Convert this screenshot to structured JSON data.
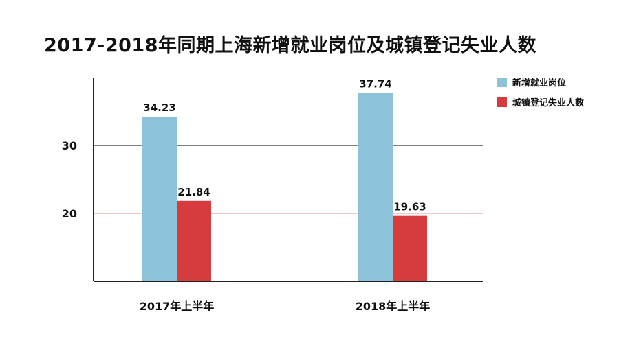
{
  "chart_data": {
    "type": "bar",
    "title": "2017-2018年同期上海新增就业岗位及城镇登记失业人数",
    "categories": [
      "2017年上半年",
      "2018年上半年"
    ],
    "series": [
      {
        "name": "新增就业岗位",
        "values": [
          34.23,
          37.74
        ],
        "color": "#8dc3d8"
      },
      {
        "name": "城镇登记失业人数",
        "values": [
          21.84,
          19.63
        ],
        "color": "#d63b3d"
      }
    ],
    "data_labels": [
      [
        "34.23",
        "37.74"
      ],
      [
        "21.84",
        "19.63"
      ]
    ],
    "yticks": [
      20,
      30
    ],
    "ytick_labels": [
      "20",
      "30"
    ],
    "ylim": [
      10,
      40
    ],
    "gridline_colors": [
      "#e9a7a7",
      "#333333"
    ],
    "legend_position": "top-right",
    "xlabel": "",
    "ylabel": ""
  }
}
